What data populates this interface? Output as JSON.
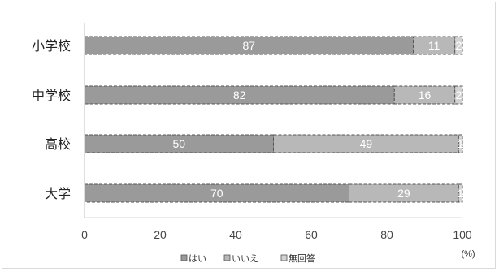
{
  "chart_data": {
    "type": "bar",
    "orientation": "horizontal",
    "stacked": true,
    "categories": [
      "小学校",
      "中学校",
      "高校",
      "大学"
    ],
    "series": [
      {
        "name": "はい",
        "values": [
          87,
          82,
          50,
          70
        ],
        "color": "#9a9a9a"
      },
      {
        "name": "いいえ",
        "values": [
          11,
          16,
          49,
          29
        ],
        "color": "#b8b8b8"
      },
      {
        "name": "無回答",
        "values": [
          2,
          2,
          1,
          1
        ],
        "color": "#d3d3d3"
      }
    ],
    "xlim": [
      0,
      100
    ],
    "xticks": [
      0,
      20,
      40,
      60,
      80,
      100
    ],
    "x_unit": "(%)",
    "legend": "bottom",
    "grid": false
  }
}
